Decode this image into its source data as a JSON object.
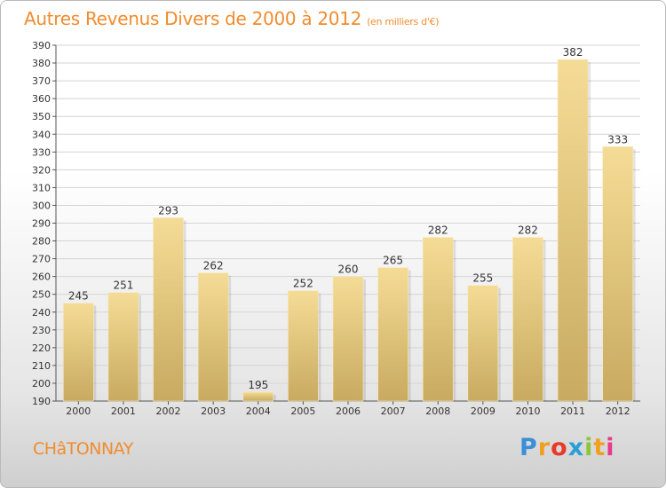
{
  "header": {
    "title": "Autres Revenus Divers de 2000 à 2012",
    "subtitle": "(en milliers d'€)"
  },
  "footer": {
    "commune": "CHâTONNAY",
    "logo_letters": [
      "P",
      "r",
      "o",
      "x",
      "i",
      "t",
      "i"
    ],
    "logo_colors": [
      "#3a8fd6",
      "#f0a020",
      "#e83a2a",
      "#2a9fd6",
      "#8cc63f",
      "#f0a020",
      "#e83a8a"
    ]
  },
  "colors": {
    "title": "#f08c2e",
    "bar_top": "#f5dc96",
    "bar_bottom": "#c8aa60",
    "grid": "#d4d4d4"
  },
  "chart_data": {
    "type": "bar",
    "title": "Autres Revenus Divers de 2000 à 2012",
    "subtitle": "(en milliers d'€)",
    "categories": [
      "2000",
      "2001",
      "2002",
      "2003",
      "2004",
      "2005",
      "2006",
      "2007",
      "2008",
      "2009",
      "2010",
      "2011",
      "2012"
    ],
    "values": [
      245,
      251,
      293,
      262,
      195,
      252,
      260,
      265,
      282,
      255,
      282,
      382,
      333
    ],
    "ylim": [
      190,
      390
    ],
    "yticks": [
      190,
      200,
      210,
      220,
      230,
      240,
      250,
      260,
      270,
      280,
      290,
      300,
      310,
      320,
      330,
      340,
      350,
      360,
      370,
      380,
      390
    ],
    "grid": true,
    "legend": "none"
  }
}
